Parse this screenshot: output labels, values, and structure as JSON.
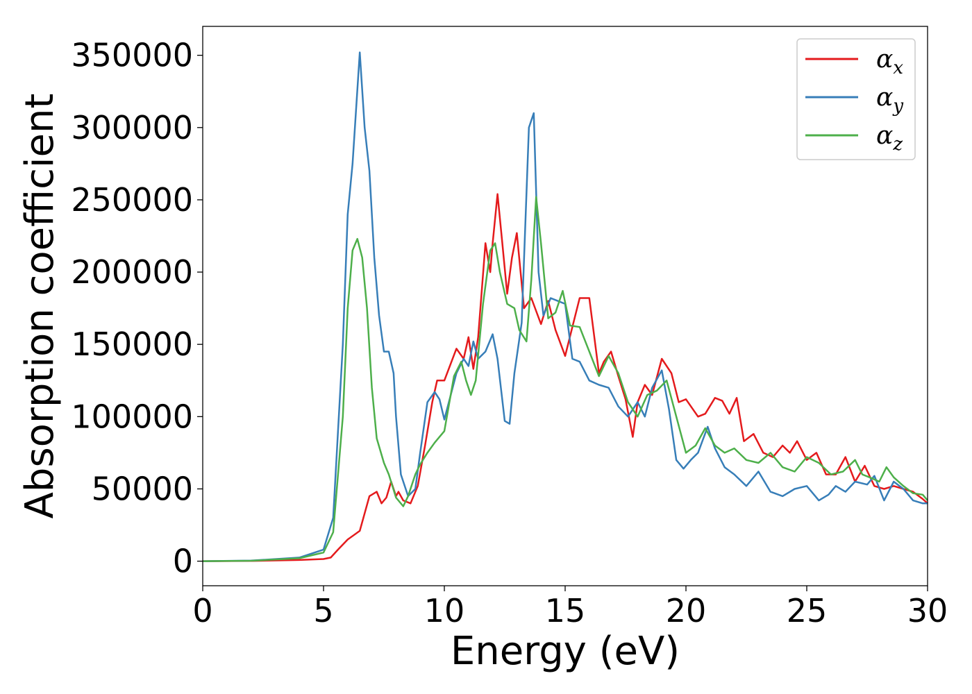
{
  "chart_data": {
    "type": "line",
    "xlabel": "Energy (eV)",
    "ylabel": "Absorption coefficient",
    "xlim": [
      0,
      30
    ],
    "ylim": [
      -17000,
      370000
    ],
    "xticks": [
      "0",
      "5",
      "10",
      "15",
      "20",
      "25",
      "30"
    ],
    "yticks": [
      "0",
      "50000",
      "100000",
      "150000",
      "200000",
      "250000",
      "300000",
      "350000"
    ],
    "grid": false,
    "legend_position": "top-right",
    "series": [
      {
        "name": "α",
        "subscript": "x",
        "color": "#e41a1c",
        "x": [
          0,
          2,
          4,
          5,
          5.3,
          5.6,
          6,
          6.5,
          6.9,
          7.2,
          7.4,
          7.6,
          7.8,
          8.0,
          8.1,
          8.3,
          8.6,
          8.9,
          9.2,
          9.5,
          9.7,
          10,
          10.5,
          10.8,
          11,
          11.2,
          11.4,
          11.7,
          11.9,
          12.0,
          12.2,
          12.4,
          12.6,
          12.8,
          13.0,
          13.3,
          13.6,
          14.0,
          14.3,
          14.6,
          15.0,
          15.3,
          15.6,
          16.0,
          16.4,
          16.6,
          16.9,
          17.2,
          17.5,
          17.8,
          18.0,
          18.3,
          18.6,
          19.0,
          19.4,
          19.7,
          20.0,
          20.5,
          20.8,
          21.2,
          21.5,
          21.8,
          22.1,
          22.4,
          22.8,
          23.2,
          23.6,
          24.0,
          24.3,
          24.6,
          25.0,
          25.4,
          25.8,
          26.2,
          26.6,
          27.0,
          27.4,
          27.8,
          28.2,
          28.6,
          29.0,
          29.4,
          29.8,
          30
        ],
        "values": [
          0,
          200,
          800,
          1500,
          2500,
          8000,
          15000,
          21000,
          45000,
          48000,
          40000,
          44000,
          55000,
          45000,
          48000,
          42000,
          40000,
          52000,
          80000,
          110000,
          125000,
          125000,
          147000,
          140000,
          155000,
          133000,
          155000,
          220000,
          200000,
          220000,
          254000,
          220000,
          185000,
          210000,
          227000,
          175000,
          182000,
          164000,
          180000,
          160000,
          142000,
          162000,
          182000,
          182000,
          130000,
          138000,
          145000,
          128000,
          112000,
          86000,
          110000,
          122000,
          115000,
          140000,
          130000,
          110000,
          112000,
          100000,
          102000,
          113000,
          111000,
          102000,
          113000,
          83000,
          88000,
          75000,
          72000,
          80000,
          75000,
          83000,
          70000,
          75000,
          60000,
          60000,
          72000,
          55000,
          66000,
          52000,
          50000,
          52000,
          50000,
          48000,
          43000,
          40000
        ]
      },
      {
        "name": "α",
        "subscript": "y",
        "color": "#377eb8",
        "x": [
          0,
          2,
          4,
          5,
          5.4,
          5.8,
          6.0,
          6.2,
          6.5,
          6.7,
          6.9,
          7.1,
          7.3,
          7.5,
          7.7,
          7.9,
          8.0,
          8.2,
          8.5,
          8.8,
          9.0,
          9.3,
          9.6,
          9.8,
          10.0,
          10.5,
          10.8,
          11.0,
          11.2,
          11.4,
          11.7,
          12.0,
          12.2,
          12.5,
          12.7,
          12.9,
          13.2,
          13.5,
          13.7,
          13.9,
          14.1,
          14.4,
          14.7,
          15.0,
          15.3,
          15.6,
          16.0,
          16.4,
          16.8,
          17.2,
          17.6,
          18.0,
          18.3,
          18.6,
          19.0,
          19.3,
          19.6,
          19.9,
          20.2,
          20.5,
          20.9,
          21.2,
          21.6,
          22.0,
          22.5,
          23.0,
          23.5,
          24.0,
          24.5,
          25.0,
          25.5,
          25.9,
          26.2,
          26.6,
          27.0,
          27.5,
          27.8,
          28.2,
          28.6,
          29.0,
          29.4,
          29.8,
          30
        ],
        "values": [
          0,
          400,
          2500,
          8000,
          30000,
          150000,
          240000,
          275000,
          352000,
          300000,
          270000,
          210000,
          170000,
          145000,
          145000,
          130000,
          100000,
          60000,
          45000,
          50000,
          75000,
          110000,
          117000,
          112000,
          98000,
          130000,
          140000,
          135000,
          152000,
          140000,
          145000,
          157000,
          140000,
          97000,
          95000,
          130000,
          165000,
          300000,
          310000,
          200000,
          170000,
          182000,
          180000,
          178000,
          140000,
          138000,
          125000,
          122000,
          120000,
          107000,
          100000,
          110000,
          100000,
          120000,
          132000,
          105000,
          70000,
          64000,
          70000,
          75000,
          93000,
          78000,
          65000,
          60000,
          52000,
          62000,
          48000,
          45000,
          50000,
          52000,
          42000,
          46000,
          52000,
          48000,
          55000,
          53000,
          59000,
          42000,
          55000,
          50000,
          42000,
          40000,
          40000
        ]
      },
      {
        "name": "α",
        "subscript": "z",
        "color": "#4daf4a",
        "x": [
          0,
          2,
          4,
          5,
          5.4,
          5.8,
          6.0,
          6.2,
          6.4,
          6.6,
          6.8,
          7.0,
          7.2,
          7.5,
          7.7,
          8.0,
          8.3,
          8.5,
          8.8,
          9.0,
          9.3,
          9.6,
          10.0,
          10.4,
          10.7,
          10.9,
          11.1,
          11.3,
          11.6,
          11.9,
          12.1,
          12.3,
          12.6,
          12.9,
          13.1,
          13.4,
          13.6,
          13.8,
          14.0,
          14.3,
          14.6,
          14.9,
          15.2,
          15.6,
          16.0,
          16.4,
          16.8,
          17.2,
          17.6,
          18.0,
          18.4,
          18.8,
          19.2,
          19.6,
          20.0,
          20.4,
          20.8,
          21.2,
          21.6,
          22.0,
          22.5,
          23.0,
          23.5,
          24.0,
          24.5,
          25.0,
          25.5,
          26.0,
          26.5,
          27.0,
          27.3,
          27.6,
          28.0,
          28.3,
          28.6,
          29.0,
          29.4,
          29.8,
          30
        ],
        "values": [
          0,
          300,
          2000,
          6000,
          20000,
          100000,
          175000,
          215000,
          223000,
          210000,
          175000,
          120000,
          85000,
          68000,
          60000,
          44000,
          38000,
          45000,
          60000,
          67000,
          75000,
          82000,
          90000,
          128000,
          138000,
          125000,
          115000,
          125000,
          178000,
          215000,
          220000,
          200000,
          178000,
          175000,
          160000,
          152000,
          195000,
          252000,
          220000,
          168000,
          172000,
          187000,
          163000,
          162000,
          145000,
          128000,
          142000,
          130000,
          110000,
          100000,
          115000,
          118000,
          125000,
          100000,
          75000,
          80000,
          92000,
          80000,
          75000,
          78000,
          70000,
          68000,
          75000,
          65000,
          62000,
          72000,
          68000,
          60000,
          62000,
          70000,
          60000,
          58000,
          55000,
          65000,
          58000,
          52000,
          47000,
          46000,
          42000
        ]
      }
    ]
  }
}
